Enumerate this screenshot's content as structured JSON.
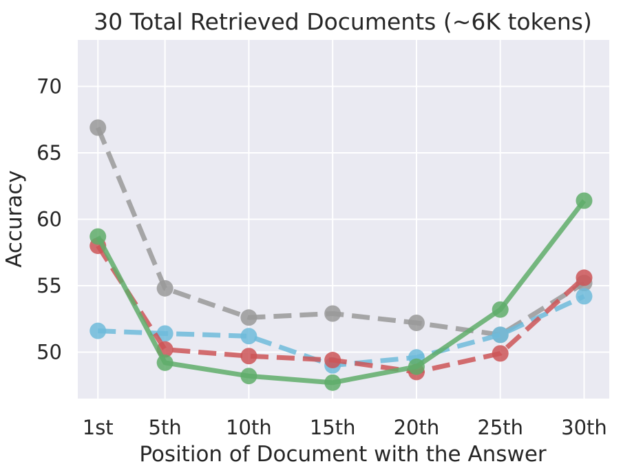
{
  "chart_data": {
    "type": "line",
    "title": "30 Total Retrieved Documents (~6K tokens)",
    "xlabel": "Position of Document with the Answer",
    "ylabel": "Accuracy",
    "categories": [
      "1st",
      "5th",
      "10th",
      "15th",
      "20th",
      "25th",
      "30th"
    ],
    "x": [
      1,
      5,
      10,
      15,
      20,
      25,
      30
    ],
    "xlim": [
      -0.2,
      31.5
    ],
    "ylim": [
      46.5,
      73.5
    ],
    "yticks": [
      50,
      55,
      60,
      65,
      70
    ],
    "grid": true,
    "series": [
      {
        "color": "#999999",
        "dashed": true,
        "values": [
          66.9,
          54.8,
          52.6,
          52.9,
          52.2,
          51.3,
          55.2
        ]
      },
      {
        "color": "#6fbbdb",
        "dashed": true,
        "values": [
          51.6,
          51.4,
          51.2,
          49.0,
          49.6,
          51.3,
          54.2
        ]
      },
      {
        "color": "#cd5557",
        "dashed": true,
        "values": [
          58.0,
          50.2,
          49.7,
          49.4,
          48.5,
          49.9,
          55.6
        ]
      },
      {
        "color": "#5fad6a",
        "dashed": false,
        "values": [
          58.7,
          49.2,
          48.2,
          47.7,
          48.9,
          53.2,
          61.4
        ]
      }
    ]
  }
}
